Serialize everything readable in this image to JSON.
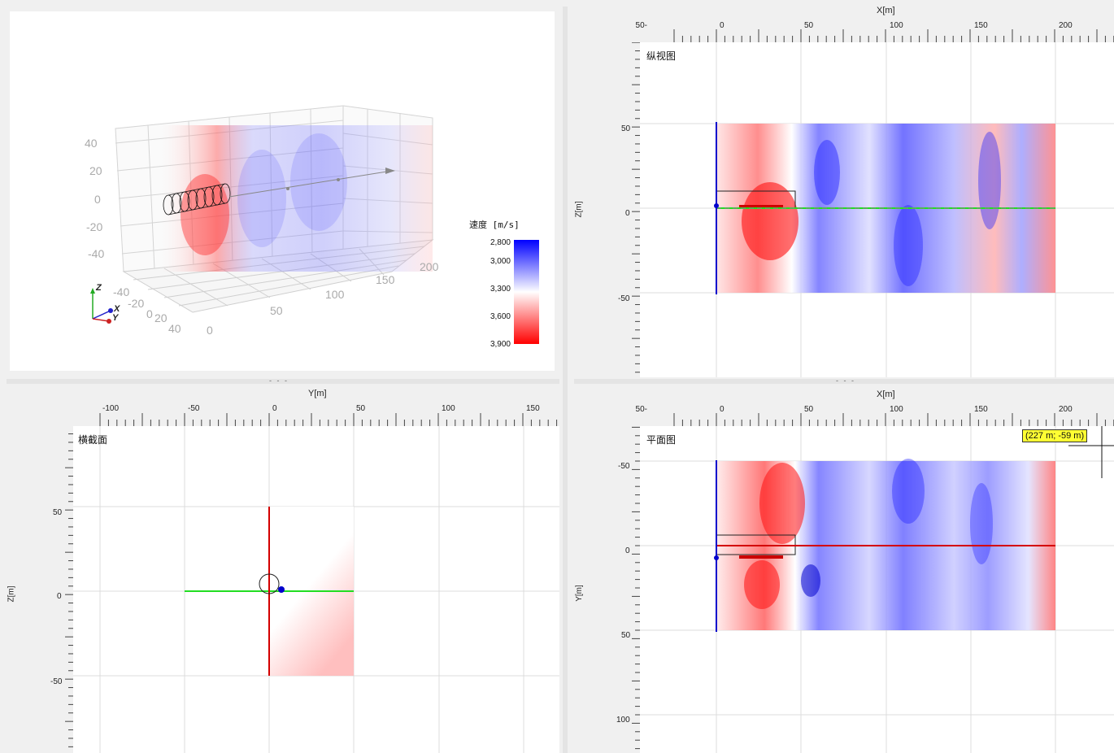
{
  "views": {
    "perspective": {
      "z_ticks": [
        "40",
        "20",
        "0",
        "-20",
        "-40"
      ],
      "y_ticks": [
        "-40",
        "-20",
        "0",
        "20",
        "40"
      ],
      "x_ticks": [
        "0",
        "50",
        "100",
        "150",
        "200"
      ],
      "axes_gizmo": {
        "z": "Z",
        "x": "X",
        "y": "Y"
      }
    },
    "longitudinal": {
      "title": "纵视图",
      "x_axis_label": "X[m]",
      "y_axis_label": "Z[m]",
      "x_ticks": [
        "-50",
        "0",
        "50",
        "100",
        "150",
        "200"
      ],
      "y_ticks": [
        "50",
        "0",
        "-50"
      ]
    },
    "cross_section": {
      "title": "横截面",
      "x_axis_label": "Y[m]",
      "y_axis_label": "Z[m]",
      "x_ticks": [
        "-100",
        "-50",
        "0",
        "50",
        "100",
        "150"
      ],
      "y_ticks": [
        "50",
        "0",
        "-50"
      ]
    },
    "plan": {
      "title": "平面图",
      "x_axis_label": "X[m]",
      "y_axis_label": "Y[m]",
      "x_ticks": [
        "-50",
        "0",
        "50",
        "100",
        "150",
        "200"
      ],
      "y_ticks": [
        "-50",
        "0",
        "50",
        "100"
      ],
      "cursor_readout": "(227 m; -59 m)"
    }
  },
  "legend": {
    "title": "速度 [m/s]",
    "values": [
      "2,800",
      "3,000",
      "3,300",
      "3,600",
      "3,900"
    ],
    "colors": {
      "low": "#0000ff",
      "mid": "#ffffff",
      "high": "#ff0000"
    }
  },
  "splitter_grip": "- - -",
  "colors": {
    "tunnel_axis_red": "#d40000",
    "cross_axis_green": "#22dd22",
    "face_blue": "#0000cc",
    "grid": "#d8d8d8"
  }
}
